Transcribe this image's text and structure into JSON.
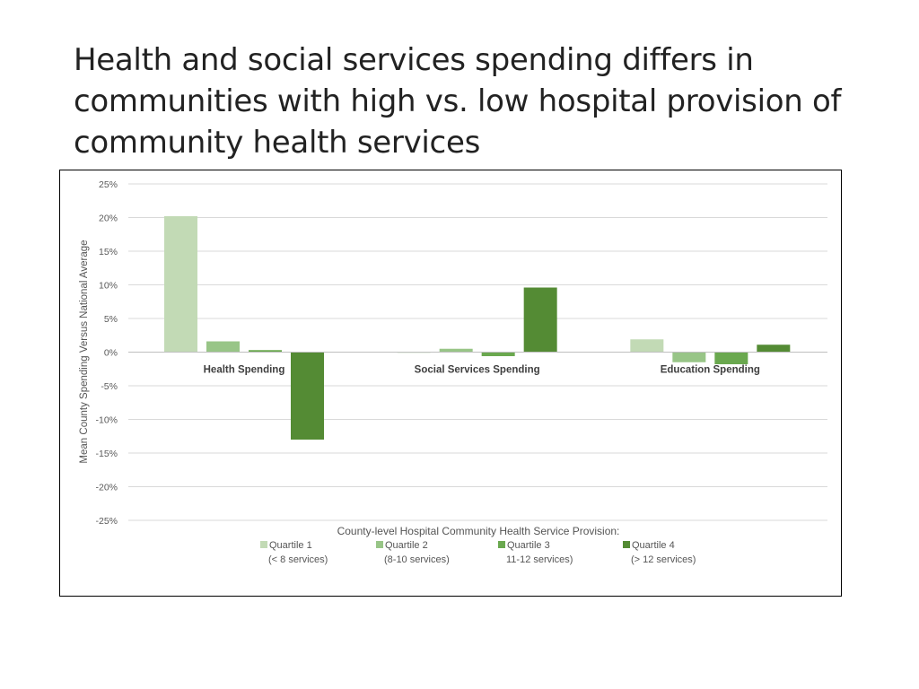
{
  "slide": {
    "title": "Health and social services spending differs in communities with high vs. low hospital provision of community health services"
  },
  "chart_data": {
    "type": "bar",
    "title": "",
    "xlabel": "",
    "ylabel": "Mean County Spending Versus National Average",
    "ylim": [
      -25,
      25
    ],
    "yticks": [
      25,
      20,
      15,
      10,
      5,
      0,
      -5,
      -10,
      -15,
      -20,
      -25
    ],
    "ytick_suffix": "%",
    "grid": true,
    "categories": [
      "Health Spending",
      "Social Services Spending",
      "Education Spending"
    ],
    "series": [
      {
        "name": "Quartile 1",
        "sublabel": "(< 8 services)",
        "color": "#c2dab5",
        "values": [
          20.2,
          -0.1,
          1.9
        ]
      },
      {
        "name": "Quartile 2",
        "sublabel": "(8-10 services)",
        "color": "#98c587",
        "values": [
          1.6,
          0.5,
          -1.5
        ]
      },
      {
        "name": "Quartile 3",
        "sublabel": "11-12 services)",
        "color": "#6aa84f",
        "values": [
          0.3,
          -0.6,
          -1.8
        ]
      },
      {
        "name": "Quartile 4",
        "sublabel": "(> 12 services)",
        "color": "#548b34",
        "values": [
          -13.0,
          9.6,
          1.1
        ]
      }
    ],
    "legend": {
      "title": "County-level Hospital Community Health Service Provision:",
      "position": "bottom"
    }
  }
}
